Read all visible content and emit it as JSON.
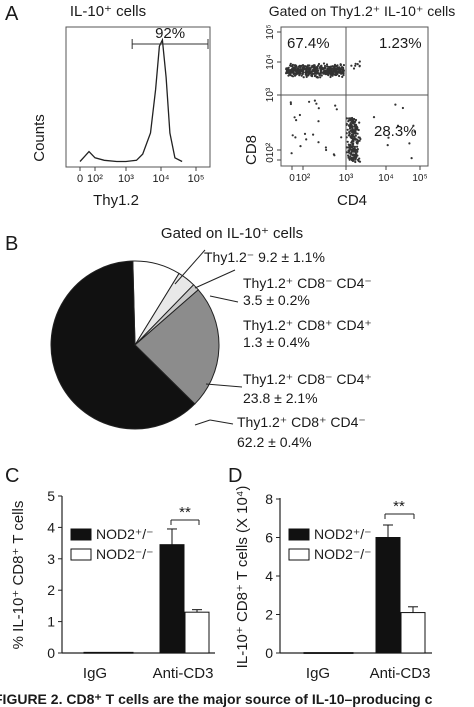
{
  "panel_labels": {
    "a": "A",
    "b": "B",
    "c": "C",
    "d": "D"
  },
  "caption": "FIGURE 2.    CD8⁺ T cells are the major source of IL-10–producing c",
  "chart_data": [
    {
      "id": "A1",
      "type": "line",
      "title": "IL-10⁺ cells",
      "ylabel": "Counts",
      "xlabel": "Thy1.2",
      "xscale": "log",
      "x_ticks": [
        "0",
        "10²",
        "10³",
        "10⁴",
        "10⁵"
      ],
      "gate_label": "92%",
      "gate_range": [
        1500,
        100000
      ],
      "series": [
        {
          "x": [
            0,
            30,
            60,
            100,
            200,
            500,
            1000,
            2000,
            3000,
            5000,
            7000,
            9000,
            11000,
            14000,
            18000,
            25000,
            40000
          ],
          "y": [
            0.02,
            0.06,
            0.1,
            0.05,
            0.03,
            0.02,
            0.02,
            0.03,
            0.08,
            0.25,
            0.6,
            0.95,
            1.0,
            0.7,
            0.25,
            0.05,
            0.02
          ]
        }
      ]
    },
    {
      "id": "A2",
      "type": "scatter",
      "title": "Gated on Thy1.2⁺ IL-10⁺ cells",
      "xlabel": "CD4",
      "ylabel": "CD8",
      "x_ticks": [
        "0",
        "10²",
        "10³",
        "10⁴",
        "10⁵"
      ],
      "y_ticks": [
        "0",
        "10²",
        "10³",
        "10⁴",
        "10⁵"
      ],
      "quadrants": {
        "ul": "67.4%",
        "ur": "1.23%",
        "lr": "28.3%"
      },
      "gates": {
        "x": 1000,
        "y": 1000
      }
    },
    {
      "id": "B",
      "type": "pie",
      "title": "Gated on IL-10⁺ cells",
      "slices": [
        {
          "line1": "Thy1.2⁻  9.2 ± 1.1%",
          "line2": "",
          "value": 9.2,
          "color": "#ffffff"
        },
        {
          "line1": "Thy1.2⁺ CD8⁻ CD4⁻",
          "line2": "3.5 ± 0.2%",
          "value": 3.5,
          "color": "#e8e8e8"
        },
        {
          "line1": "Thy1.2⁺ CD8⁺ CD4⁺",
          "line2": "1.3 ± 0.4%",
          "value": 1.3,
          "color": "#c8c8c8"
        },
        {
          "line1": "Thy1.2⁺ CD8⁻ CD4⁺",
          "line2": "23.8 ± 2.1%",
          "value": 23.8,
          "color": "#8c8c8c"
        },
        {
          "line1": "Thy1.2⁺ CD8⁺ CD4⁻",
          "line2": "62.2 ± 0.4%",
          "value": 62.2,
          "color": "#111111"
        }
      ]
    },
    {
      "id": "C",
      "type": "bar",
      "ylabel": "% IL-10⁺ CD8⁺ T cells",
      "categories": [
        "IgG",
        "Anti-CD3"
      ],
      "ylim": [
        0,
        5
      ],
      "y_ticks": [
        "0",
        "1",
        "2",
        "3",
        "4",
        "5"
      ],
      "significance": "**",
      "series": [
        {
          "name": "NOD2⁺/⁻",
          "values": [
            0.02,
            3.45
          ],
          "errors": [
            0.01,
            0.5
          ],
          "color": "#111111"
        },
        {
          "name": "NOD2⁻/⁻",
          "values": [
            0.02,
            1.3
          ],
          "errors": [
            0.01,
            0.08
          ],
          "color": "#ffffff"
        }
      ]
    },
    {
      "id": "D",
      "type": "bar",
      "ylabel": "IL-10⁺ CD8⁺ T cells (X 10⁴)",
      "categories": [
        "IgG",
        "Anti-CD3"
      ],
      "ylim": [
        0,
        8
      ],
      "y_ticks": [
        "0",
        "2",
        "4",
        "6",
        "8"
      ],
      "significance": "**",
      "series": [
        {
          "name": "NOD2⁺/⁻",
          "values": [
            0.02,
            6.0
          ],
          "errors": [
            0.01,
            0.65
          ],
          "color": "#111111"
        },
        {
          "name": "NOD2⁻/⁻",
          "values": [
            0.02,
            2.1
          ],
          "errors": [
            0.01,
            0.3
          ],
          "color": "#ffffff"
        }
      ]
    }
  ]
}
